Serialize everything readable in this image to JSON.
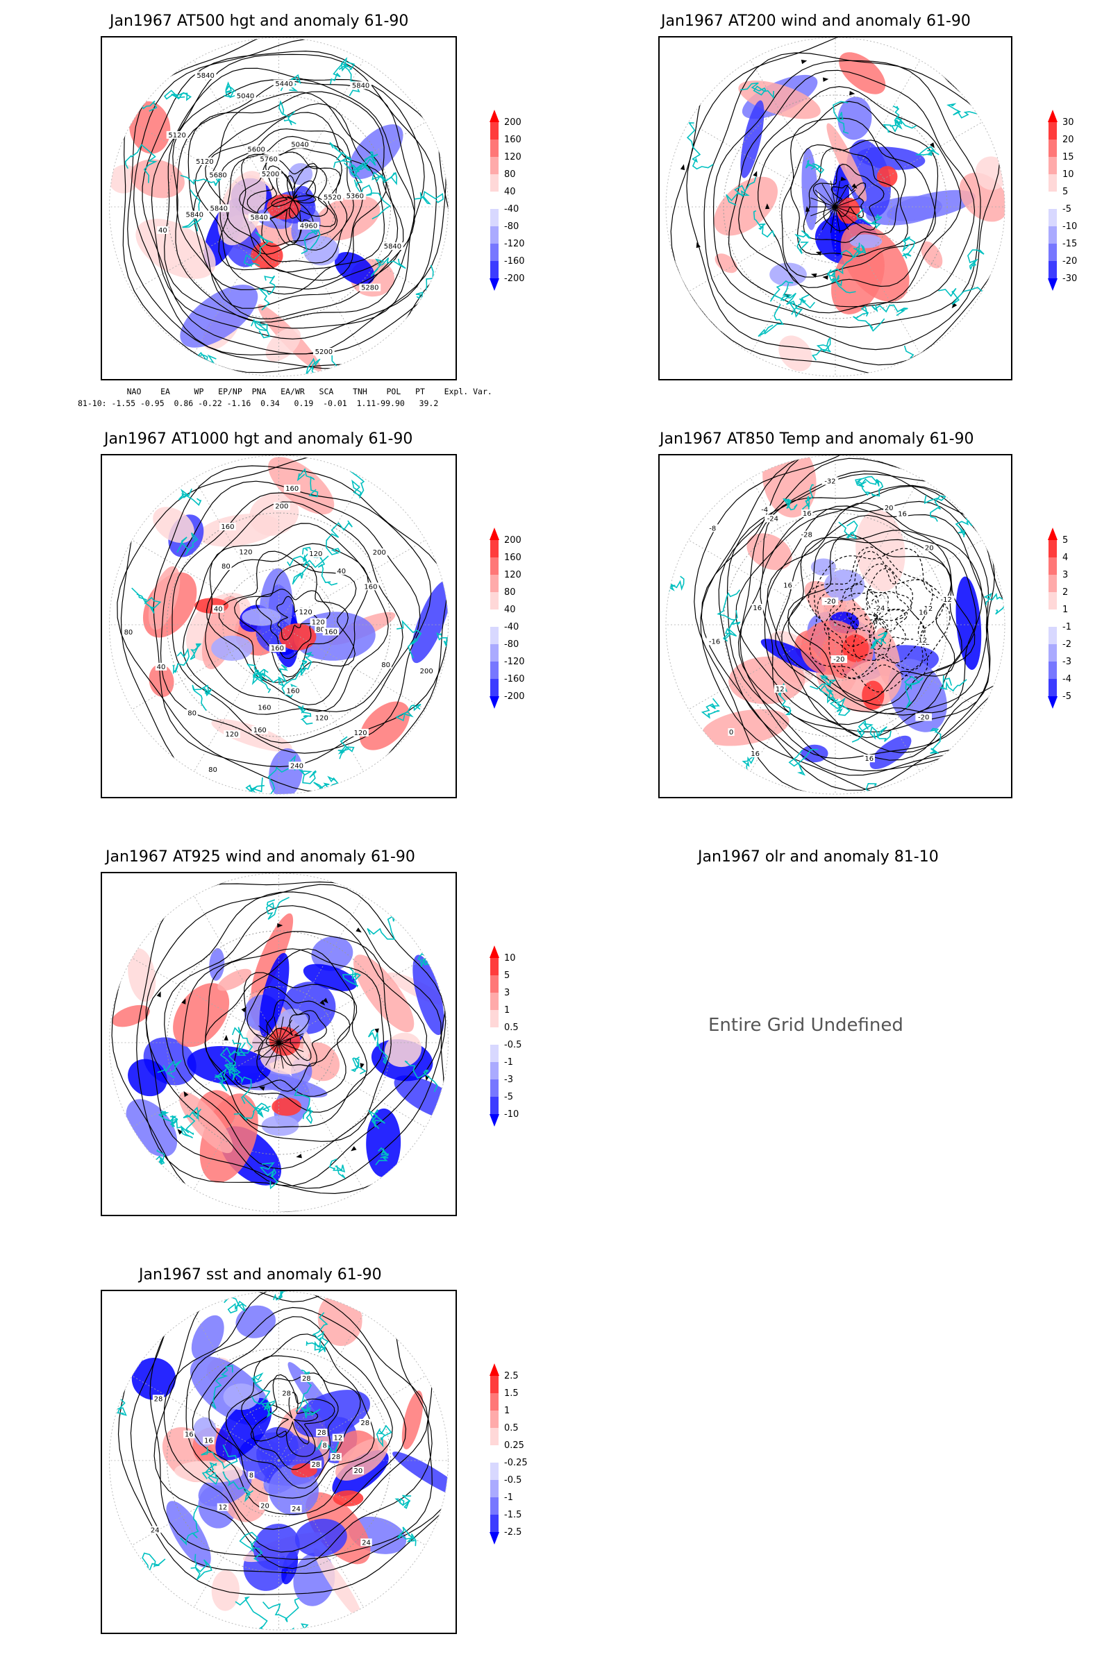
{
  "panels": [
    {
      "title": "Jan1967 AT500 hgt and anomaly 61-90",
      "colorbar": [
        "200",
        "160",
        "120",
        "80",
        "40",
        "-40",
        "-80",
        "-120",
        "-160",
        "-200"
      ],
      "contour_labels": [
        "5840",
        "40",
        "5120",
        "5040",
        "5200",
        "4960",
        "5040",
        "5120",
        "5200",
        "5280",
        "5360",
        "5440",
        "5520",
        "5600",
        "5680",
        "5760",
        "5840",
        "5840",
        "5840",
        "5840",
        "5840"
      ]
    },
    {
      "title": "Jan1967 AT200 wind and anomaly 61-90",
      "colorbar": [
        "30",
        "20",
        "15",
        "10",
        "5",
        "-5",
        "-10",
        "-15",
        "-20",
        "-30"
      ],
      "contour_labels": []
    },
    {
      "title": "Jan1967 AT1000 hgt and anomaly 61-90",
      "colorbar": [
        "200",
        "160",
        "120",
        "80",
        "40",
        "-40",
        "-80",
        "-120",
        "-160",
        "-200"
      ],
      "contour_labels": [
        "80",
        "120",
        "120",
        "160",
        "160",
        "200",
        "160",
        "80",
        "40",
        "40",
        "80",
        "120",
        "120",
        "80",
        "40",
        "200",
        "240",
        "200",
        "160",
        "120",
        "160",
        "160",
        "120",
        "160",
        "120",
        "80",
        "160",
        "80"
      ]
    },
    {
      "title": "Jan1967 AT850 Temp and anomaly 61-90",
      "colorbar": [
        "5",
        "4",
        "3",
        "2",
        "1",
        "-1",
        "-2",
        "-3",
        "-4",
        "-5"
      ],
      "contour_labels": [
        "16",
        "12",
        "12",
        "16",
        "16",
        "-12",
        "-20",
        "-32",
        "-20",
        "-28",
        "-24",
        "-24",
        "-20",
        "-16",
        "-12",
        "-8",
        "-4",
        "0",
        "16",
        "16",
        "16",
        "12",
        "16",
        "20",
        "20"
      ]
    },
    {
      "title": "Jan1967 AT925 wind and anomaly 61-90",
      "colorbar": [
        "10",
        "5",
        "3",
        "1",
        "0.5",
        "-0.5",
        "-1",
        "-3",
        "-5",
        "-10"
      ],
      "contour_labels": []
    },
    {
      "title": "Jan1967 olr and anomaly 81-10",
      "undefined_text": "Entire Grid Undefined"
    },
    {
      "title": "Jan1967 sst and anomaly 61-90",
      "colorbar": [
        "2.5",
        "1.5",
        "1",
        "0.5",
        "0.25",
        "-0.25",
        "-0.5",
        "-1",
        "-1.5",
        "-2.5"
      ],
      "contour_labels": [
        "28",
        "28",
        "24",
        "28",
        "24",
        "20",
        "16",
        "12",
        "8",
        "28",
        "28",
        "16",
        "12",
        "8",
        "24",
        "20",
        "28",
        "28"
      ]
    }
  ],
  "teleconnections": {
    "header": "     NAO    EA     WP   EP/NP  PNA   EA/WR   SCA    TNH    POL   PT    Expl. Var.",
    "values": "81-10: -1.55 -0.95  0.86 -0.22 -1.16  0.34   0.19  -0.01  1.11-99.90   39.2"
  },
  "colors": {
    "pos": [
      "#ff0000",
      "#ff3c3c",
      "#ff7777",
      "#ffaaaa",
      "#ffd8d8"
    ],
    "neg": [
      "#d8d8ff",
      "#aaaaff",
      "#7777ff",
      "#3c3cff",
      "#0000ff"
    ],
    "coast": "#00c0c0"
  }
}
